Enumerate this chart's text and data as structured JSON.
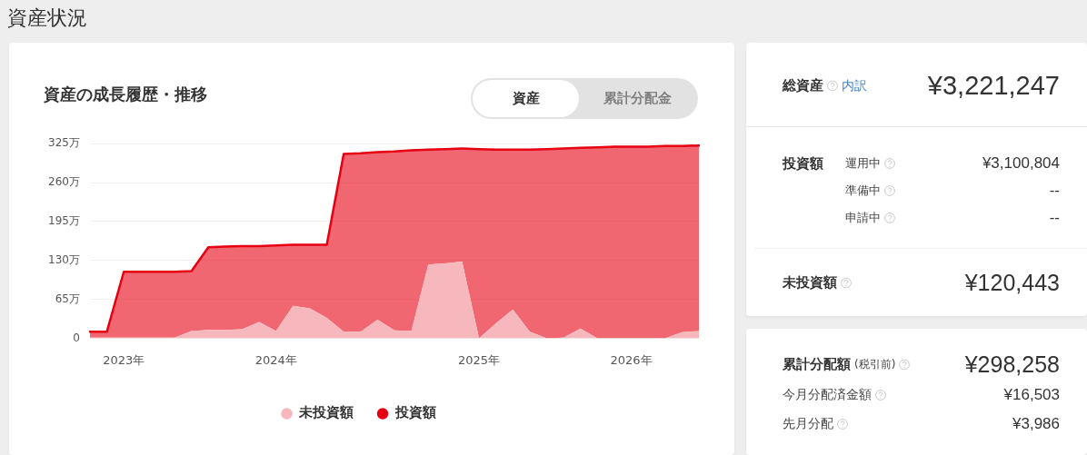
{
  "chart_data": [
    {
      "type": "area",
      "title": "資産の成長履歴・推移",
      "annotations": [
        "資産",
        "累計分配金"
      ],
      "categories": [
        null,
        null,
        "2023年",
        null,
        null,
        null,
        null,
        null,
        null,
        null,
        null,
        "2024年",
        null,
        null,
        null,
        null,
        null,
        null,
        null,
        null,
        null,
        null,
        null,
        "2025年",
        null,
        null,
        null,
        null,
        null,
        null,
        null,
        null,
        "2026年",
        null,
        null,
        null,
        null
      ],
      "stacked": true,
      "series": [
        {
          "name": "未投資額",
          "color": "#f7b8bd",
          "values": [
            1,
            1,
            1,
            1,
            1,
            1,
            12,
            14,
            14,
            15,
            27,
            12,
            54,
            50,
            34,
            11,
            11,
            31,
            13,
            12,
            123,
            125,
            128,
            0,
            25,
            48,
            11,
            0,
            1,
            16,
            0,
            0,
            0,
            0,
            0,
            10,
            12
          ]
        },
        {
          "name": "投資額",
          "color": "#e60012",
          "values": [
            10,
            10,
            110,
            110,
            110,
            110,
            100,
            138,
            139,
            139,
            127,
            143,
            102,
            106,
            122,
            297,
            298,
            280,
            299,
            302,
            192,
            191,
            189,
            316,
            290,
            267,
            304,
            316,
            316,
            302,
            319,
            320,
            320,
            320,
            321,
            311,
            310
          ]
        }
      ],
      "ylim": [
        0,
        325
      ],
      "yticks": [
        0,
        {
          "value": 65,
          "label": "65万"
        },
        {
          "value": 130,
          "label": "130万"
        },
        {
          "value": 195,
          "label": "195万"
        },
        {
          "value": 260,
          "label": "260万"
        },
        {
          "value": 325,
          "label": "325万"
        }
      ],
      "grid": "y",
      "legend": "bottom"
    },
    {
      "type": "other",
      "title": "資産状況",
      "annotations": [
        "総資産",
        "内訳",
        "¥3,221,247",
        "投資額",
        "運用中",
        "¥3,100,804",
        "準備中",
        "--",
        "申請中",
        "--",
        "未投資額",
        "¥120,443",
        "累計分配額",
        "(税引前)",
        "¥298,258",
        "今月分配済金額",
        "¥16,503",
        "先月分配",
        "¥3,986"
      ]
    }
  ]
}
